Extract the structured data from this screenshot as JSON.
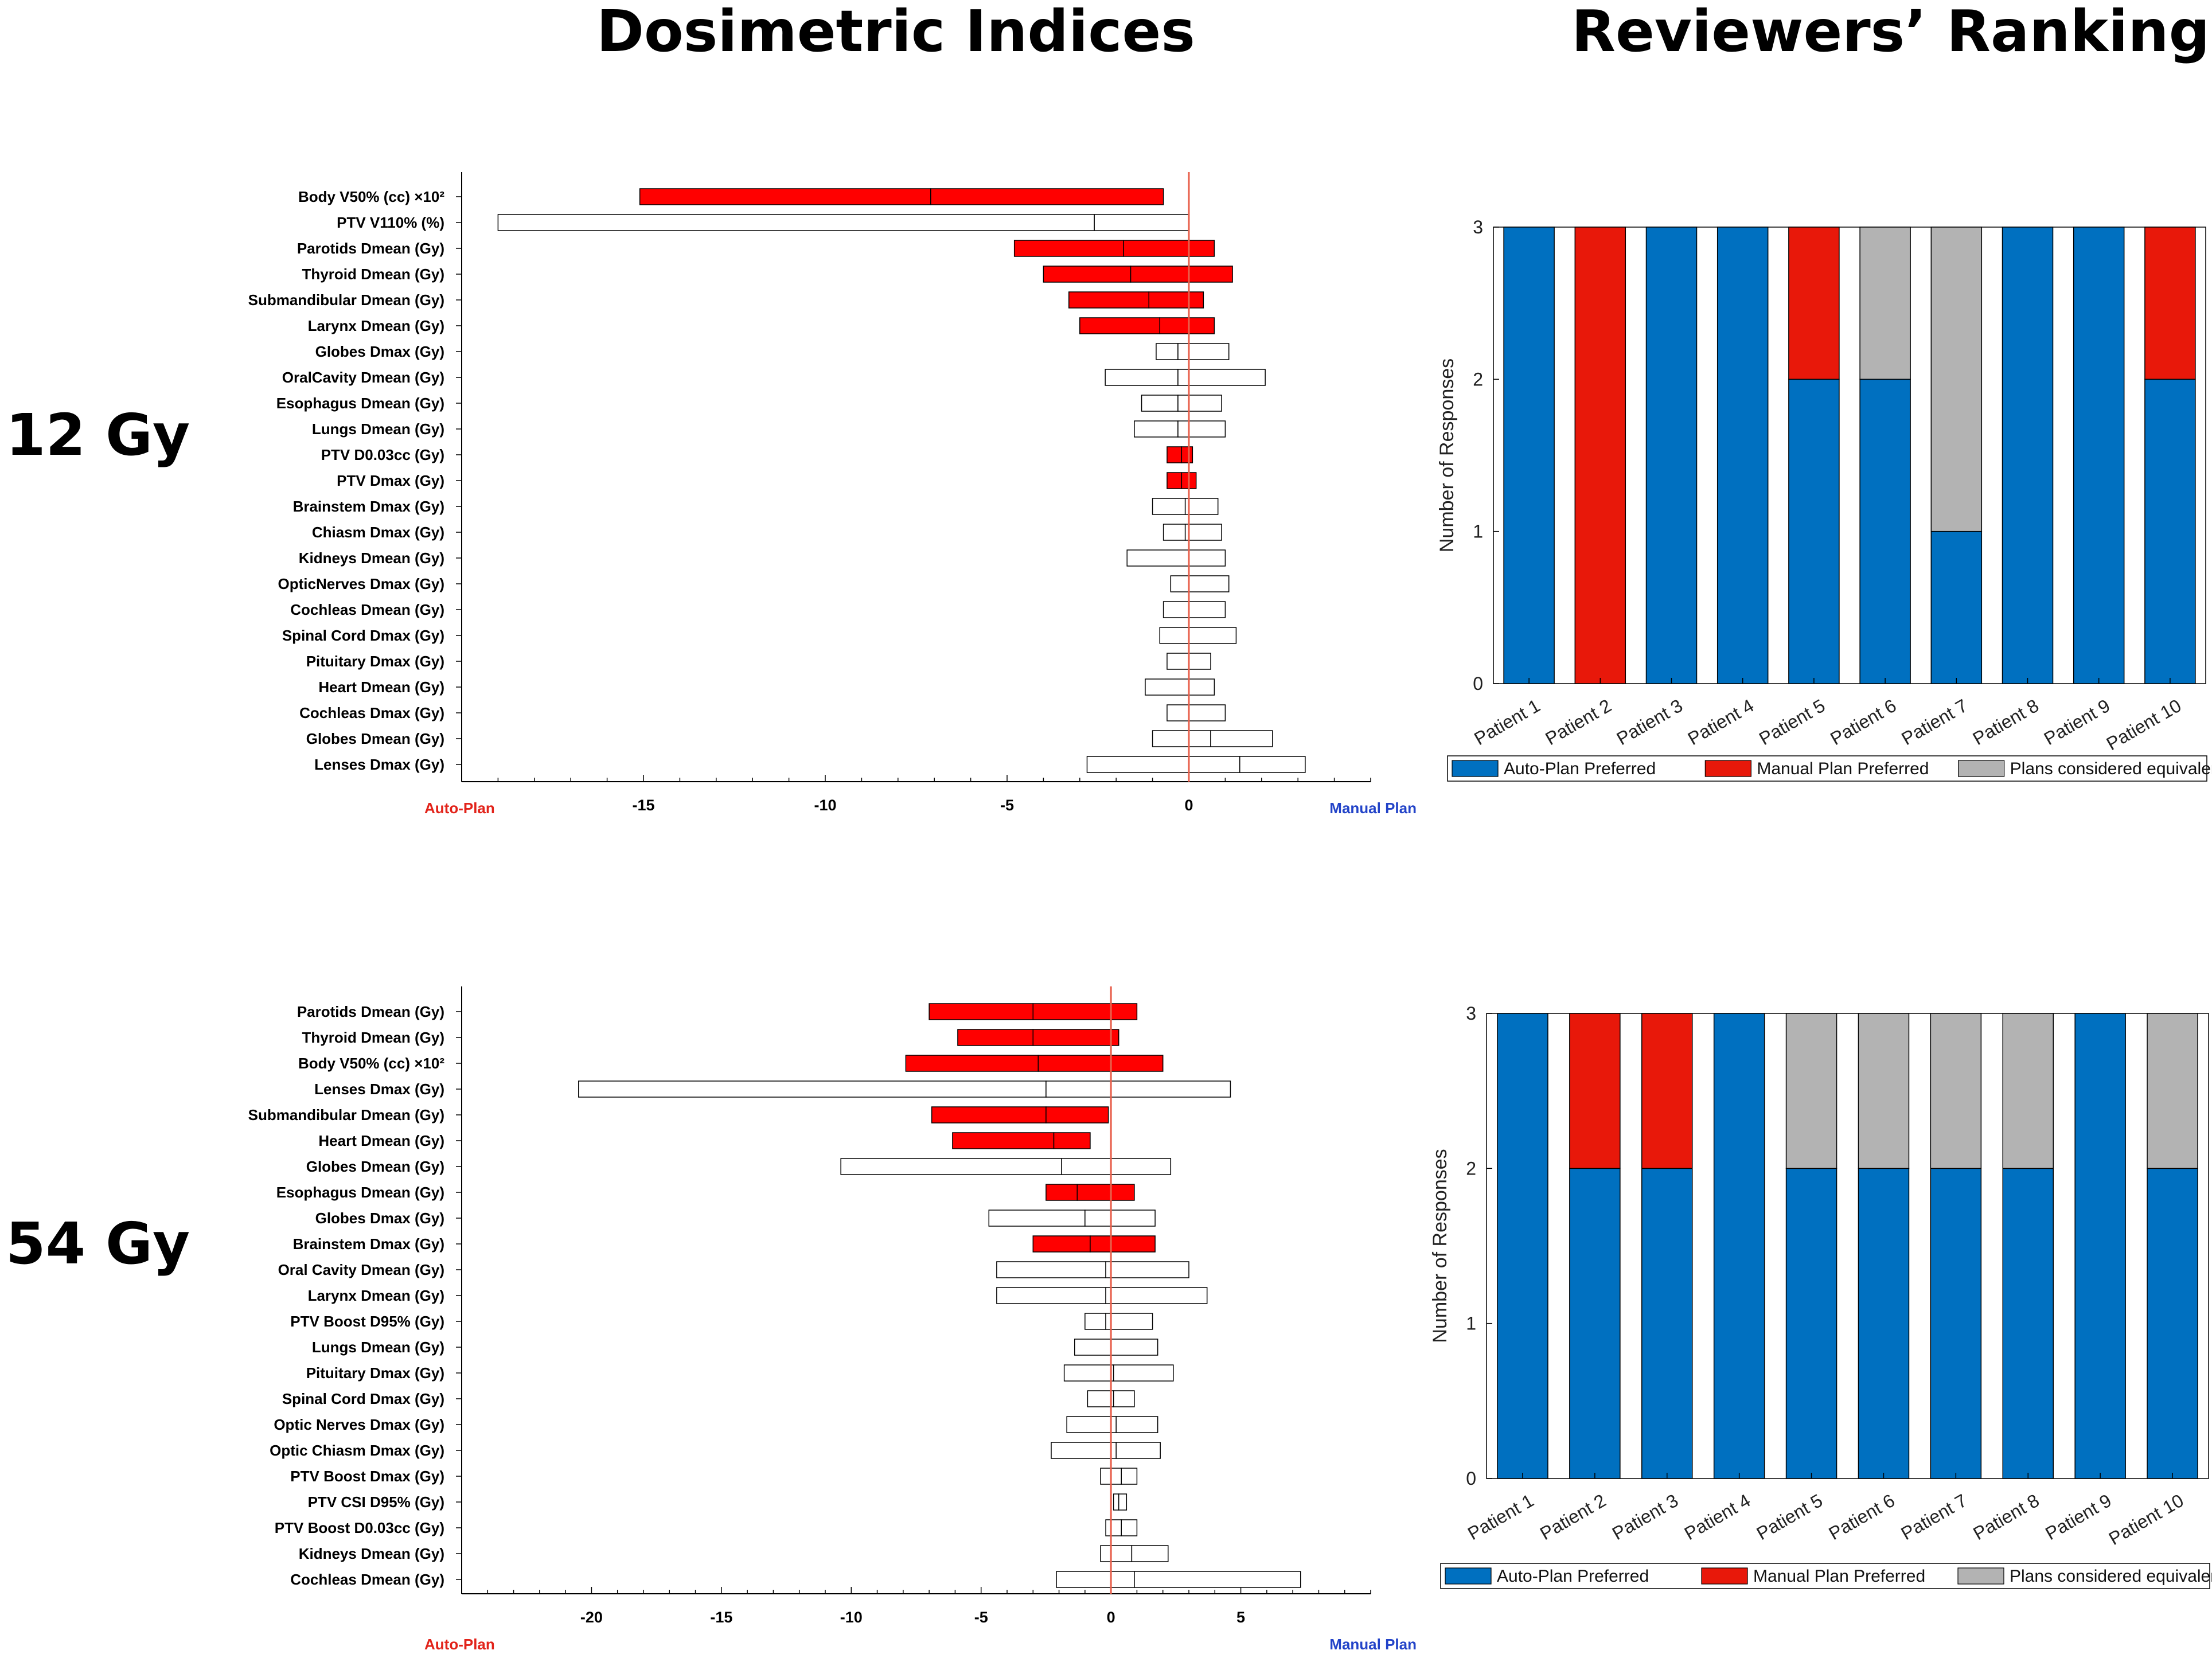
{
  "headers": {
    "left": "Dosimetric Indices",
    "right": "Reviewers’ Ranking"
  },
  "row_labels": [
    "12 Gy",
    "54 Gy"
  ],
  "colors": {
    "significant": "#ff0000",
    "neutral": "#ffffff",
    "zero_line": "#e8604c",
    "auto_label": "#e2231a",
    "manual_label": "#2243c8",
    "auto_pref": "#0070c0",
    "manual_pref": "#e8180a",
    "equivalent": "#b3b3b3"
  },
  "chart_data": [
    {
      "id": "dosi-12",
      "type": "bar",
      "subtype": "tornado",
      "title": "12 Gy",
      "left_label": "Auto-Plan",
      "right_label": "Manual Plan",
      "xlim": [
        -20,
        5
      ],
      "xticks": [
        -15,
        -10,
        -5,
        0
      ],
      "rows": [
        {
          "label": "Body V50% (cc) ×10²",
          "low": -15.1,
          "mid": -7.1,
          "high": -0.7,
          "significant": true
        },
        {
          "label": "PTV V110% (%)",
          "low": -19.0,
          "mid": -2.6,
          "high": 0.0,
          "significant": false
        },
        {
          "label": "Parotids Dmean (Gy)",
          "low": -4.8,
          "mid": -1.8,
          "high": 0.7,
          "significant": true
        },
        {
          "label": "Thyroid Dmean (Gy)",
          "low": -4.0,
          "mid": -1.6,
          "high": 1.2,
          "significant": true
        },
        {
          "label": "Submandibular Dmean (Gy)",
          "low": -3.3,
          "mid": -1.1,
          "high": 0.4,
          "significant": true
        },
        {
          "label": "Larynx Dmean (Gy)",
          "low": -3.0,
          "mid": -0.8,
          "high": 0.7,
          "significant": true
        },
        {
          "label": "Globes Dmax (Gy)",
          "low": -0.9,
          "mid": -0.3,
          "high": 1.1,
          "significant": false
        },
        {
          "label": "OralCavity Dmean (Gy)",
          "low": -2.3,
          "mid": -0.3,
          "high": 2.1,
          "significant": false
        },
        {
          "label": "Esophagus Dmean (Gy)",
          "low": -1.3,
          "mid": -0.3,
          "high": 0.9,
          "significant": false
        },
        {
          "label": "Lungs Dmean (Gy)",
          "low": -1.5,
          "mid": -0.3,
          "high": 1.0,
          "significant": false
        },
        {
          "label": "PTV D0.03cc (Gy)",
          "low": -0.6,
          "mid": -0.2,
          "high": 0.1,
          "significant": true
        },
        {
          "label": "PTV Dmax (Gy)",
          "low": -0.6,
          "mid": -0.2,
          "high": 0.2,
          "significant": true
        },
        {
          "label": "Brainstem Dmax (Gy)",
          "low": -1.0,
          "mid": -0.1,
          "high": 0.8,
          "significant": false
        },
        {
          "label": "Chiasm Dmax (Gy)",
          "low": -0.7,
          "mid": -0.1,
          "high": 0.9,
          "significant": false
        },
        {
          "label": "Kidneys Dmean (Gy)",
          "low": -1.7,
          "mid": 0.0,
          "high": 1.0,
          "significant": false
        },
        {
          "label": "OpticNerves Dmax (Gy)",
          "low": -0.5,
          "mid": 0.0,
          "high": 1.1,
          "significant": false
        },
        {
          "label": "Cochleas Dmean (Gy)",
          "low": -0.7,
          "mid": 0.0,
          "high": 1.0,
          "significant": false
        },
        {
          "label": "Spinal Cord Dmax (Gy)",
          "low": -0.8,
          "mid": 0.0,
          "high": 1.3,
          "significant": false
        },
        {
          "label": "Pituitary Dmax (Gy)",
          "low": -0.6,
          "mid": 0.0,
          "high": 0.6,
          "significant": false
        },
        {
          "label": "Heart Dmean (Gy)",
          "low": -1.2,
          "mid": 0.0,
          "high": 0.7,
          "significant": false
        },
        {
          "label": "Cochleas Dmax (Gy)",
          "low": -0.6,
          "mid": 0.0,
          "high": 1.0,
          "significant": false
        },
        {
          "label": "Globes Dmean (Gy)",
          "low": -1.0,
          "mid": 0.6,
          "high": 2.3,
          "significant": false
        },
        {
          "label": "Lenses Dmax (Gy)",
          "low": -2.8,
          "mid": 1.4,
          "high": 3.2,
          "significant": false
        }
      ]
    },
    {
      "id": "rank-12",
      "type": "bar",
      "subtype": "stacked",
      "title": "12 Gy",
      "ylabel": "Number of Responses",
      "ylim": [
        0,
        3
      ],
      "yticks": [
        0,
        1,
        2,
        3
      ],
      "categories": [
        "Patient 1",
        "Patient 2",
        "Patient 3",
        "Patient 4",
        "Patient 5",
        "Patient 6",
        "Patient 7",
        "Patient 8",
        "Patient 9",
        "Patient 10"
      ],
      "series": [
        {
          "name": "Auto-Plan Preferred",
          "color_key": "auto_pref",
          "values": [
            3,
            0,
            3,
            3,
            2,
            2,
            1,
            3,
            3,
            2
          ]
        },
        {
          "name": "Manual Plan Preferred",
          "color_key": "manual_pref",
          "values": [
            0,
            3,
            0,
            0,
            1,
            0,
            0,
            0,
            0,
            1
          ]
        },
        {
          "name": "Plans considered equivalent",
          "color_key": "equivalent",
          "values": [
            0,
            0,
            0,
            0,
            0,
            1,
            2,
            0,
            0,
            0
          ]
        }
      ]
    },
    {
      "id": "dosi-54",
      "type": "bar",
      "subtype": "tornado",
      "title": "54 Gy",
      "left_label": "Auto-Plan",
      "right_label": "Manual Plan",
      "xlim": [
        -25,
        10
      ],
      "xticks": [
        -20,
        -15,
        -10,
        -5,
        0,
        5
      ],
      "rows": [
        {
          "label": "Parotids Dmean (Gy)",
          "low": -7.0,
          "mid": -3.0,
          "high": 1.0,
          "significant": true
        },
        {
          "label": "Thyroid Dmean (Gy)",
          "low": -5.9,
          "mid": -3.0,
          "high": 0.3,
          "significant": true
        },
        {
          "label": "Body V50% (cc) ×10²",
          "low": -7.9,
          "mid": -2.8,
          "high": 2.0,
          "significant": true
        },
        {
          "label": "Lenses Dmax (Gy)",
          "low": -20.5,
          "mid": -2.5,
          "high": 4.6,
          "significant": false
        },
        {
          "label": "Submandibular Dmean (Gy)",
          "low": -6.9,
          "mid": -2.5,
          "high": -0.1,
          "significant": true
        },
        {
          "label": "Heart Dmean (Gy)",
          "low": -6.1,
          "mid": -2.2,
          "high": -0.8,
          "significant": true
        },
        {
          "label": "Globes Dmean (Gy)",
          "low": -10.4,
          "mid": -1.9,
          "high": 2.3,
          "significant": false
        },
        {
          "label": "Esophagus Dmean (Gy)",
          "low": -2.5,
          "mid": -1.3,
          "high": 0.9,
          "significant": true
        },
        {
          "label": "Globes Dmax (Gy)",
          "low": -4.7,
          "mid": -1.0,
          "high": 1.7,
          "significant": false
        },
        {
          "label": "Brainstem Dmax (Gy)",
          "low": -3.0,
          "mid": -0.8,
          "high": 1.7,
          "significant": true
        },
        {
          "label": "Oral Cavity Dmean (Gy)",
          "low": -4.4,
          "mid": -0.2,
          "high": 3.0,
          "significant": false
        },
        {
          "label": "Larynx Dmean (Gy)",
          "low": -4.4,
          "mid": -0.2,
          "high": 3.7,
          "significant": false
        },
        {
          "label": "PTV Boost D95% (Gy)",
          "low": -1.0,
          "mid": -0.2,
          "high": 1.6,
          "significant": false
        },
        {
          "label": "Lungs Dmean (Gy)",
          "low": -1.4,
          "mid": 0.0,
          "high": 1.8,
          "significant": false
        },
        {
          "label": "Pituitary Dmax (Gy)",
          "low": -1.8,
          "mid": 0.1,
          "high": 2.4,
          "significant": false
        },
        {
          "label": "Spinal Cord Dmax (Gy)",
          "low": -0.9,
          "mid": 0.1,
          "high": 0.9,
          "significant": false
        },
        {
          "label": "Optic Nerves Dmax (Gy)",
          "low": -1.7,
          "mid": 0.2,
          "high": 1.8,
          "significant": false
        },
        {
          "label": "Optic Chiasm Dmax (Gy)",
          "low": -2.3,
          "mid": 0.2,
          "high": 1.9,
          "significant": false
        },
        {
          "label": "PTV Boost Dmax (Gy)",
          "low": -0.4,
          "mid": 0.4,
          "high": 1.0,
          "significant": false
        },
        {
          "label": "PTV CSI D95% (Gy)",
          "low": 0.1,
          "mid": 0.3,
          "high": 0.6,
          "significant": false
        },
        {
          "label": "PTV Boost D0.03cc (Gy)",
          "low": -0.2,
          "mid": 0.4,
          "high": 1.0,
          "significant": false
        },
        {
          "label": "Kidneys Dmean (Gy)",
          "low": -0.4,
          "mid": 0.8,
          "high": 2.2,
          "significant": false
        },
        {
          "label": "Cochleas Dmean (Gy)",
          "low": -2.1,
          "mid": 0.9,
          "high": 7.3,
          "significant": false
        }
      ]
    },
    {
      "id": "rank-54",
      "type": "bar",
      "subtype": "stacked",
      "title": "54 Gy",
      "ylabel": "Number of Responses",
      "ylim": [
        0,
        3
      ],
      "yticks": [
        0,
        1,
        2,
        3
      ],
      "categories": [
        "Patient 1",
        "Patient 2",
        "Patient 3",
        "Patient 4",
        "Patient 5",
        "Patient 6",
        "Patient 7",
        "Patient 8",
        "Patient 9",
        "Patient 10"
      ],
      "series": [
        {
          "name": "Auto-Plan Preferred",
          "color_key": "auto_pref",
          "values": [
            3,
            2,
            2,
            3,
            2,
            2,
            2,
            2,
            3,
            2
          ]
        },
        {
          "name": "Manual Plan Preferred",
          "color_key": "manual_pref",
          "values": [
            0,
            1,
            1,
            0,
            0,
            0,
            0,
            0,
            0,
            0
          ]
        },
        {
          "name": "Plans considered equivalent",
          "color_key": "equivalent",
          "values": [
            0,
            0,
            0,
            0,
            1,
            1,
            1,
            1,
            0,
            1
          ]
        }
      ]
    }
  ]
}
